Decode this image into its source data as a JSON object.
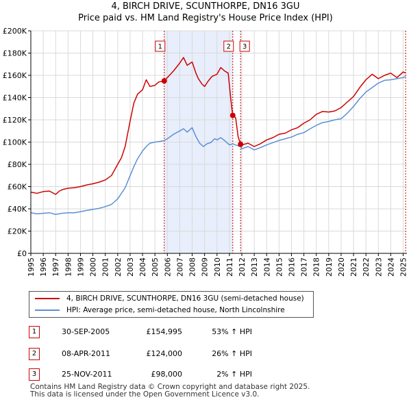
{
  "header": {
    "title_line1": "4, BIRCH DRIVE, SCUNTHORPE, DN16 3GU",
    "title_line2": "Price paid vs. HM Land Registry's House Price Index (HPI)"
  },
  "legend": {
    "property_label": "4, BIRCH DRIVE, SCUNTHORPE, DN16 3GU (semi-detached house)",
    "hpi_label": "HPI: Average price, semi-detached house, North Lincolnshire"
  },
  "sales": [
    {
      "num": "1",
      "date": "30-SEP-2005",
      "price": "£154,995",
      "hpi": "53% ↑ HPI"
    },
    {
      "num": "2",
      "date": "08-APR-2011",
      "price": "£124,000",
      "hpi": "26% ↑ HPI"
    },
    {
      "num": "3",
      "date": "25-NOV-2011",
      "price": "£98,000",
      "hpi": "2% ↑ HPI"
    }
  ],
  "footer": {
    "line1": "Contains HM Land Registry data © Crown copyright and database right 2025.",
    "line2": "This data is licensed under the Open Government Licence v3.0."
  },
  "colors": {
    "property": "#cc0000",
    "hpi": "#5b8fd6",
    "shade": "#e8eefb",
    "grid": "#d9d9d9",
    "marker_border": "#cc0000"
  },
  "chart_data": {
    "type": "line",
    "title": "Price paid vs. HM Land Registry's House Price Index (HPI)",
    "xlim": [
      1995,
      2025.3
    ],
    "ylim": [
      0,
      200000
    ],
    "x_ticks": [
      1995,
      1996,
      1997,
      1998,
      1999,
      2000,
      2001,
      2002,
      2003,
      2004,
      2005,
      2006,
      2007,
      2008,
      2009,
      2010,
      2011,
      2012,
      2013,
      2014,
      2015,
      2016,
      2017,
      2018,
      2019,
      2020,
      2021,
      2022,
      2023,
      2024,
      2025
    ],
    "x_tick_labels": [
      "1995",
      "1996",
      "1997",
      "1998",
      "1999",
      "2000",
      "2001",
      "2002",
      "2003",
      "2004",
      "2005",
      "2006",
      "2007",
      "2008",
      "2009",
      "2010",
      "2011",
      "2012",
      "2013",
      "2014",
      "2015",
      "2016",
      "2017",
      "2018",
      "2019",
      "2020",
      "2021",
      "2022",
      "2023",
      "2024",
      "2025"
    ],
    "y_ticks": [
      0,
      20000,
      40000,
      60000,
      80000,
      100000,
      120000,
      140000,
      160000,
      180000,
      200000
    ],
    "y_tick_labels": [
      "£0",
      "£20K",
      "£40K",
      "£60K",
      "£80K",
      "£100K",
      "£120K",
      "£140K",
      "£160K",
      "£180K",
      "£200K"
    ],
    "shaded_ranges": [
      [
        2005.75,
        2011.27
      ],
      [
        2011.9,
        2011.95
      ]
    ],
    "sale_points": [
      {
        "label": "1",
        "x": 2005.75,
        "y": 154995
      },
      {
        "label": "2",
        "x": 2011.27,
        "y": 124000
      },
      {
        "label": "3",
        "x": 2011.9,
        "y": 98000
      }
    ],
    "series": [
      {
        "name": "4, BIRCH DRIVE, SCUNTHORPE, DN16 3GU (semi-detached house)",
        "x": [
          1995,
          1995.5,
          1996,
          1996.5,
          1997,
          1997.3,
          1997.6,
          1998,
          1998.5,
          1999,
          1999.5,
          2000,
          2000.5,
          2001,
          2001.5,
          2002,
          2002.3,
          2002.6,
          2003,
          2003.3,
          2003.6,
          2004,
          2004.3,
          2004.6,
          2005,
          2005.3,
          2005.75,
          2006,
          2006.5,
          2007,
          2007.3,
          2007.6,
          2008,
          2008.3,
          2008.5,
          2008.8,
          2009,
          2009.3,
          2009.6,
          2010,
          2010.3,
          2010.6,
          2010.9,
          2011.1,
          2011.2,
          2011.27,
          2011.5,
          2011.7,
          2011.9,
          2012,
          2012.5,
          2013,
          2013.5,
          2014,
          2014.5,
          2015,
          2015.5,
          2016,
          2016.5,
          2017,
          2017.5,
          2018,
          2018.5,
          2019,
          2019.5,
          2020,
          2020.5,
          2021,
          2021.5,
          2022,
          2022.5,
          2023,
          2023.5,
          2024,
          2024.5,
          2025,
          2025.2
        ],
        "values": [
          55000,
          54000,
          55500,
          56000,
          53000,
          56000,
          57500,
          58500,
          59000,
          60000,
          61500,
          62500,
          64000,
          66000,
          70000,
          80000,
          86000,
          96000,
          119000,
          135000,
          143000,
          147000,
          156000,
          150000,
          151000,
          154000,
          154995,
          158000,
          164000,
          171000,
          176000,
          169000,
          172000,
          162000,
          157000,
          152000,
          150000,
          155000,
          159000,
          161000,
          167000,
          164000,
          162000,
          140000,
          130000,
          124000,
          122000,
          105000,
          98000,
          97500,
          99000,
          96000,
          98500,
          102000,
          104000,
          107000,
          108000,
          111000,
          113000,
          117000,
          120000,
          125000,
          127500,
          127000,
          128000,
          131000,
          136000,
          141000,
          149000,
          156000,
          161000,
          157000,
          160000,
          162000,
          158000,
          163000,
          162000
        ]
      },
      {
        "name": "HPI: Average price, semi-detached house, North Lincolnshire",
        "x": [
          1995,
          1995.5,
          1996,
          1996.5,
          1997,
          1997.5,
          1998,
          1998.5,
          1999,
          1999.5,
          2000,
          2000.5,
          2001,
          2001.5,
          2002,
          2002.3,
          2002.6,
          2003,
          2003.3,
          2003.6,
          2004,
          2004.3,
          2004.6,
          2005,
          2005.3,
          2005.75,
          2006,
          2006.5,
          2007,
          2007.3,
          2007.6,
          2008,
          2008.3,
          2008.6,
          2008.9,
          2009.2,
          2009.5,
          2009.8,
          2010,
          2010.3,
          2010.6,
          2011,
          2011.27,
          2011.6,
          2011.9,
          2012,
          2012.5,
          2013,
          2013.5,
          2014,
          2014.5,
          2015,
          2015.5,
          2016,
          2016.5,
          2017,
          2017.5,
          2018,
          2018.5,
          2019,
          2019.5,
          2020,
          2020.5,
          2021,
          2021.5,
          2022,
          2022.5,
          2023,
          2023.5,
          2024,
          2024.5,
          2025,
          2025.2
        ],
        "values": [
          36500,
          35500,
          36000,
          36500,
          35000,
          36000,
          36500,
          36500,
          37500,
          38500,
          39500,
          40500,
          42000,
          44000,
          49000,
          54000,
          59000,
          70000,
          78000,
          85000,
          92000,
          96000,
          99000,
          100000,
          100500,
          101300,
          103000,
          107000,
          110000,
          112000,
          109000,
          113000,
          105000,
          99000,
          96000,
          98500,
          99500,
          103000,
          102000,
          104000,
          101500,
          97500,
          98400,
          97000,
          96000,
          94000,
          96000,
          93000,
          95000,
          97500,
          99500,
          101500,
          103000,
          104500,
          107000,
          108500,
          112000,
          115000,
          117500,
          118500,
          120000,
          121000,
          126000,
          132000,
          139000,
          145000,
          149000,
          153000,
          155500,
          156000,
          157000,
          158000,
          159000
        ]
      }
    ]
  }
}
